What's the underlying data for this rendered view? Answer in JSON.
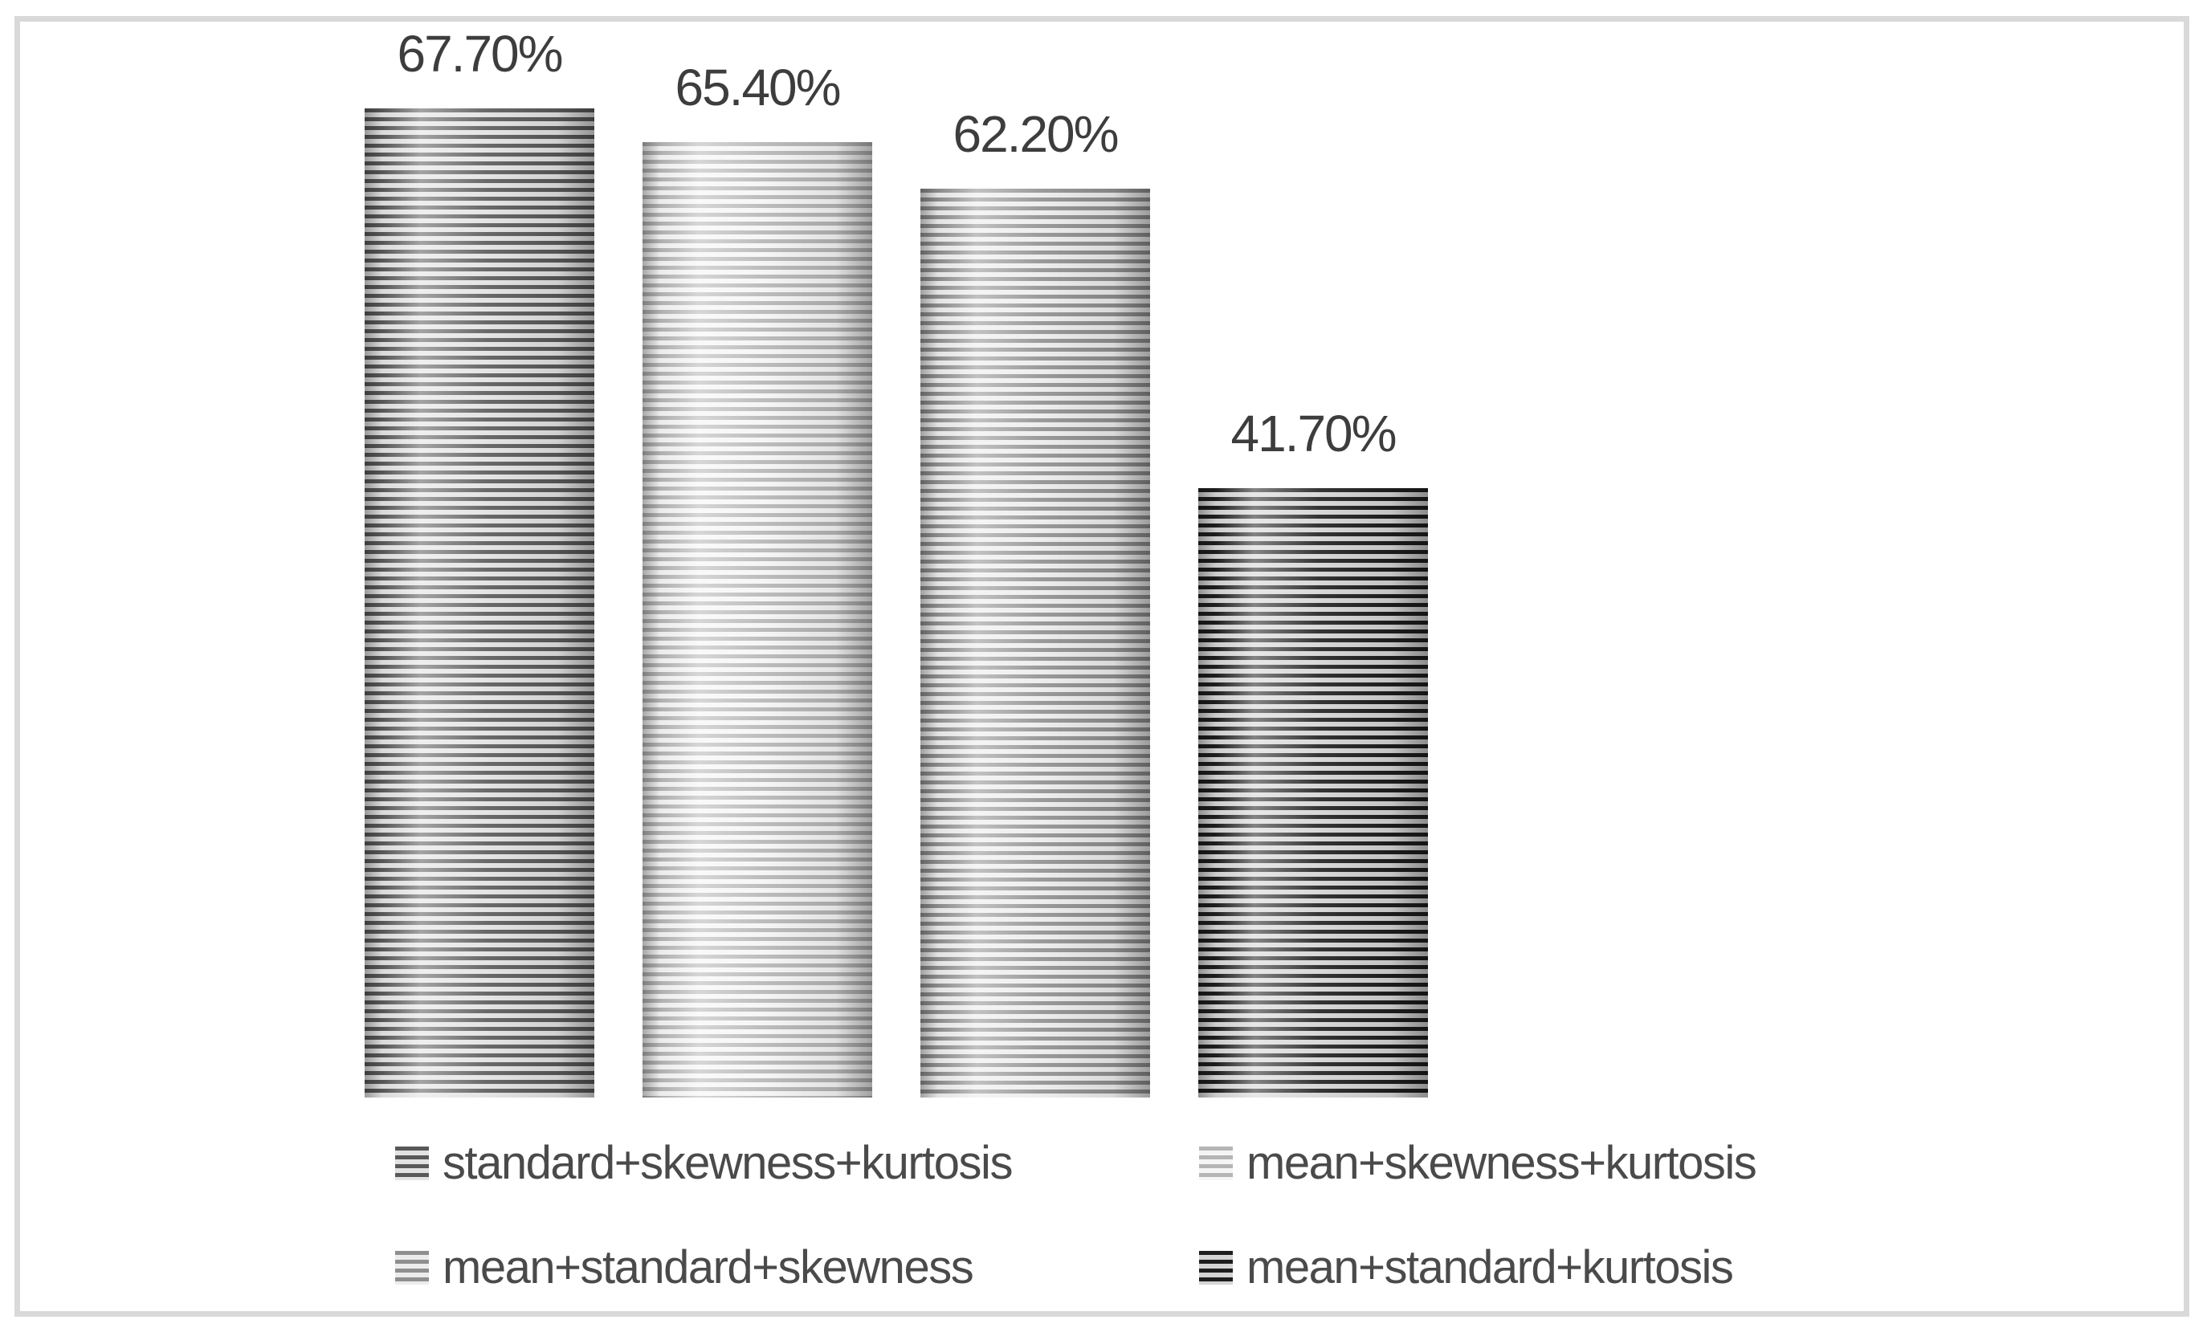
{
  "frame": {
    "border_color": "#d9d9d9",
    "background_color": "#ffffff"
  },
  "chart_data": {
    "type": "bar",
    "title": "",
    "xlabel": "",
    "ylabel": "",
    "ylim": [
      0,
      70
    ],
    "grid": false,
    "axes_visible": false,
    "legend_position": "bottom",
    "bar_fill_style": "horizontal-stripes",
    "categories": [
      "standard+skewness+kurtosis",
      "mean+skewness+kurtosis",
      "mean+standard+skewness",
      "mean+standard+kurtosis"
    ],
    "values": [
      67.7,
      65.4,
      62.2,
      41.7
    ],
    "data_labels": [
      "67.70%",
      "65.40%",
      "62.20%",
      "41.70%"
    ],
    "series_styles": [
      {
        "stripe_color": "#595959",
        "gap_color": "#e2e2e2"
      },
      {
        "stripe_color": "#b5b5b5",
        "gap_color": "#f5f5f5"
      },
      {
        "stripe_color": "#8f8f8f",
        "gap_color": "#ececec"
      },
      {
        "stripe_color": "#1e1e1e",
        "gap_color": "#d4d4d4"
      }
    ],
    "legend": [
      {
        "label": "standard+skewness+kurtosis"
      },
      {
        "label": "mean+skewness+kurtosis"
      },
      {
        "label": "mean+standard+skewness"
      },
      {
        "label": "mean+standard+kurtosis"
      }
    ],
    "label_text_color": "#3d3d3d",
    "legend_text_color": "#4a4a4a"
  }
}
